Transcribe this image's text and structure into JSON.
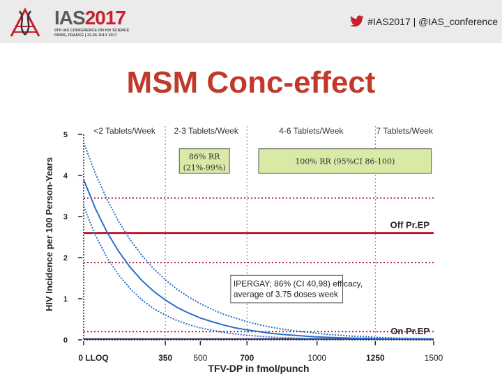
{
  "header": {
    "logo_ias": "IAS",
    "logo_year": "2017",
    "logo_sub1": "9TH IAS CONFERENCE ON HIV SCIENCE",
    "logo_sub2": "PARIS, FRANCE | 23-26 JULY 2017",
    "social": "#IAS2017 | @IAS_conference"
  },
  "slide_title": "MSM Conc-effect",
  "chart_data": {
    "type": "line",
    "xlabel": "TFV-DP in fmol/punch",
    "ylabel": "HIV Incidence per 100 Person-Years",
    "xlim": [
      0,
      1500
    ],
    "ylim": [
      0,
      5
    ],
    "x_ticks": [
      {
        "value": 0,
        "label": "0 LLOQ",
        "bold": true
      },
      {
        "value": 350,
        "label": "350",
        "bold": true
      },
      {
        "value": 500,
        "label": "500",
        "bold": false
      },
      {
        "value": 700,
        "label": "700",
        "bold": true
      },
      {
        "value": 1000,
        "label": "1000",
        "bold": false
      },
      {
        "value": 1250,
        "label": "1250",
        "bold": true
      },
      {
        "value": 1500,
        "label": "1500",
        "bold": false
      }
    ],
    "y_ticks": [
      0,
      1,
      2,
      3,
      4,
      5
    ],
    "band_dividers": [
      350,
      700,
      1250
    ],
    "band_labels": [
      {
        "text": "<2 Tablets/Week",
        "x_center": 175
      },
      {
        "text": "2-3 Tablets/Week",
        "x_center": 525
      },
      {
        "text": "4-6 Tablets/Week",
        "x_center": 975
      },
      {
        "text": "7 Tablets/Week",
        "x_center": 1375
      }
    ],
    "series": [
      {
        "role": "fit",
        "x": [
          0,
          50,
          100,
          150,
          200,
          250,
          300,
          350,
          400,
          450,
          500,
          550,
          600,
          650,
          700,
          750,
          800,
          850,
          900,
          950,
          1000,
          1050,
          1100,
          1150,
          1200,
          1250,
          1300,
          1350,
          1400,
          1450,
          1500
        ],
        "y": [
          3.9,
          3.2,
          2.62,
          2.15,
          1.76,
          1.44,
          1.18,
          0.97,
          0.79,
          0.65,
          0.53,
          0.44,
          0.36,
          0.29,
          0.24,
          0.2,
          0.16,
          0.13,
          0.11,
          0.09,
          0.07,
          0.06,
          0.05,
          0.04,
          0.035,
          0.03,
          0.025,
          0.02,
          0.015,
          0.012,
          0.01
        ]
      },
      {
        "role": "upper_ci",
        "x": [
          0,
          50,
          100,
          150,
          200,
          250,
          300,
          350,
          400,
          450,
          500,
          550,
          600,
          650,
          700,
          750,
          800,
          850,
          900,
          950,
          1000,
          1050,
          1100,
          1150,
          1200,
          1250,
          1300,
          1350,
          1400,
          1450,
          1500
        ],
        "y": [
          4.8,
          4.05,
          3.42,
          2.88,
          2.43,
          2.05,
          1.73,
          1.46,
          1.23,
          1.04,
          0.88,
          0.74,
          0.62,
          0.53,
          0.44,
          0.37,
          0.31,
          0.26,
          0.22,
          0.19,
          0.16,
          0.13,
          0.11,
          0.09,
          0.08,
          0.06,
          0.05,
          0.04,
          0.035,
          0.03,
          0.025
        ]
      },
      {
        "role": "lower_ci",
        "x": [
          0,
          50,
          100,
          150,
          200,
          250,
          300,
          350,
          400,
          450,
          500,
          550,
          600,
          650,
          700,
          750,
          800,
          850,
          900,
          950,
          1000,
          1050,
          1100,
          1150,
          1200,
          1250,
          1300,
          1350,
          1400,
          1450,
          1500
        ],
        "y": [
          3.25,
          2.55,
          2.0,
          1.58,
          1.24,
          0.97,
          0.76,
          0.6,
          0.47,
          0.37,
          0.29,
          0.23,
          0.18,
          0.14,
          0.11,
          0.087,
          0.068,
          0.053,
          0.042,
          0.033,
          0.026,
          0.02,
          0.016,
          0.012,
          0.01,
          0.008,
          0.006,
          0.005,
          0.004,
          0.003,
          0.002
        ]
      }
    ],
    "hlines": [
      {
        "y": 2.6,
        "style": "solid",
        "label": "Off Pr.EP"
      },
      {
        "y": 3.45,
        "style": "dotted"
      },
      {
        "y": 1.88,
        "style": "dotted"
      },
      {
        "y": 0.02,
        "style": "solid",
        "label": "On Pr.EP"
      },
      {
        "y": 0.2,
        "style": "dotted"
      }
    ],
    "annotations": [
      {
        "line1": "86% RR",
        "line2": "(21%-99%)",
        "x_from": 410,
        "x_to": 625,
        "y_top": 4.65,
        "y_bottom": 4.05,
        "fill": "#d9eaa6"
      },
      {
        "line1": "100% RR (95%CI 86-100)",
        "x_from": 750,
        "x_to": 1490,
        "y_top": 4.65,
        "y_bottom": 4.05,
        "fill": "#d9eaa6"
      },
      {
        "line1": "IPERGAY; 86% (CI 40,98) efficacy,",
        "line2": "average of 3.75 doses week",
        "x_from": 630,
        "x_to": 1110,
        "y_top": 1.57,
        "y_bottom": 0.9,
        "fill": "#ffffff"
      }
    ],
    "colors": {
      "fit": "#2a6fc9",
      "ci": "#2a6fc9",
      "off_prep": "#c0192d",
      "dotted_ref": "#b5173a",
      "on_prep": "#3b2a6b",
      "band_divider": "#7a7a9a"
    }
  }
}
